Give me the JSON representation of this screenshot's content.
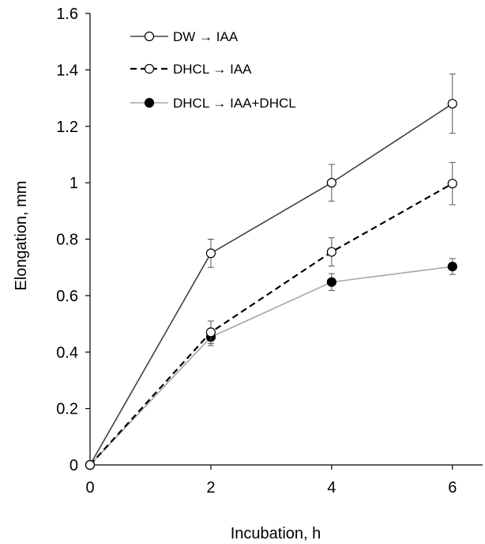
{
  "chart_data": {
    "type": "line",
    "xlabel": "Incubation, h",
    "ylabel": "Elongation, mm",
    "xlim": [
      0,
      6.5
    ],
    "ylim": [
      0,
      1.6
    ],
    "xticks": [
      "0",
      "2",
      "4",
      "6"
    ],
    "yticks": [
      "0",
      "0.2",
      "0.4",
      "0.6",
      "0.8",
      "1",
      "1.2",
      "1.4",
      "1.6"
    ],
    "grid": false,
    "legend_position": "top-left",
    "series": [
      {
        "name": "DW →  IAA",
        "x": [
          0,
          2,
          4,
          6
        ],
        "y": [
          0,
          0.75,
          1.0,
          1.28
        ],
        "error": [
          0,
          0.05,
          0.065,
          0.105
        ],
        "line_color": "#404040",
        "line_style": "solid",
        "marker": "open-circle"
      },
      {
        "name": "DHCL  →  IAA",
        "x": [
          0,
          2,
          4,
          6
        ],
        "y": [
          0,
          0.47,
          0.755,
          0.997
        ],
        "error": [
          0,
          0.04,
          0.05,
          0.075
        ],
        "line_color": "#000000",
        "line_style": "dashed",
        "marker": "open-circle"
      },
      {
        "name": "DHCL  →  IAA+DHCL",
        "x": [
          0,
          2,
          4,
          6
        ],
        "y": [
          0,
          0.453,
          0.648,
          0.703
        ],
        "error": [
          0,
          0.03,
          0.03,
          0.028
        ],
        "line_color": "#a6a6a6",
        "line_style": "solid",
        "marker": "filled-circle"
      }
    ]
  }
}
